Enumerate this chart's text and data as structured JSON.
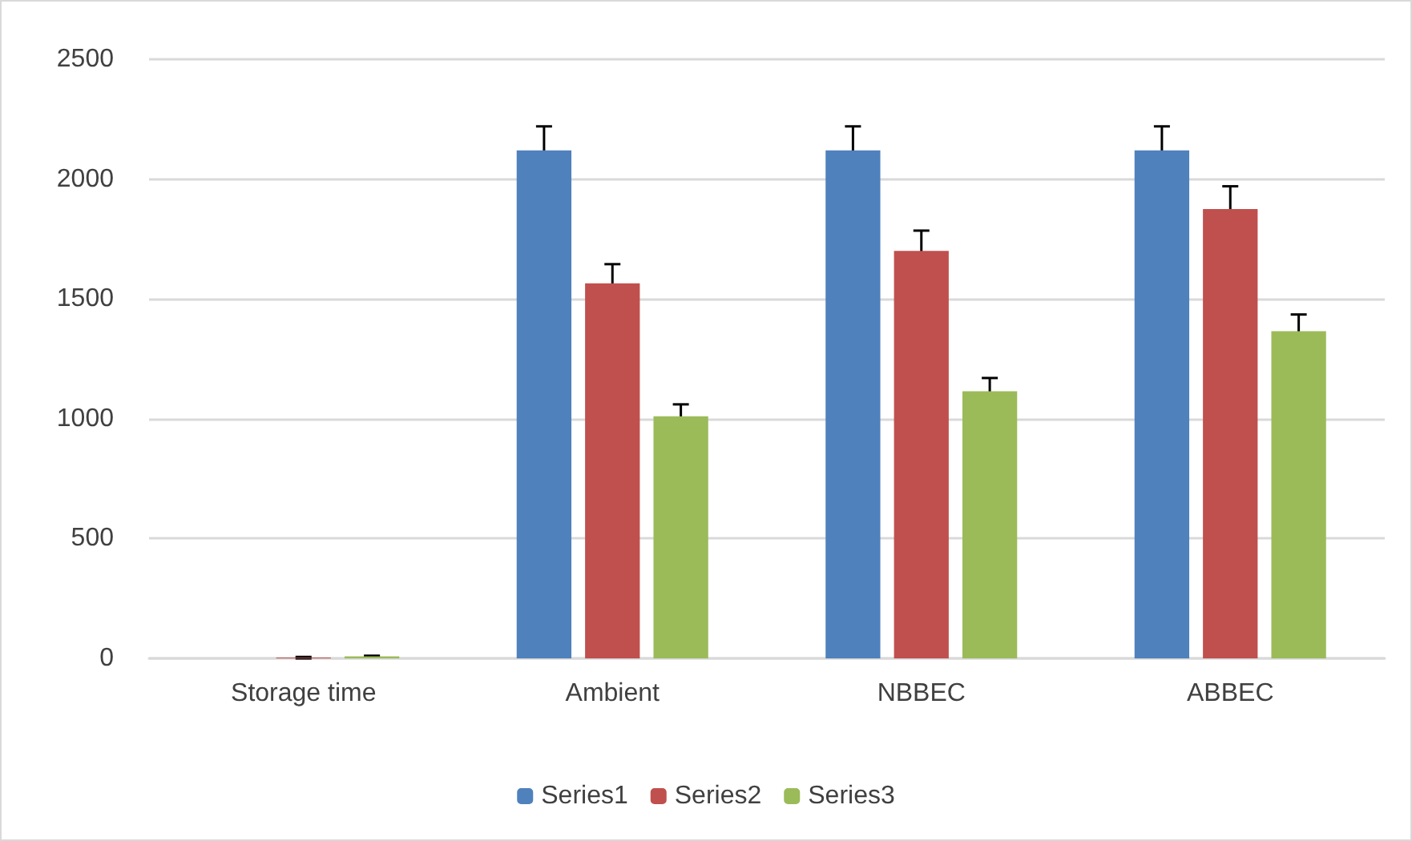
{
  "chart_data": {
    "type": "bar",
    "categories": [
      "Storage time",
      "Ambient",
      "NBBEC",
      "ABBEC"
    ],
    "series": [
      {
        "name": "Series1",
        "color": "#4f81bd",
        "values": [
          0,
          2120,
          2120,
          2120
        ],
        "errors": [
          null,
          100,
          100,
          100
        ]
      },
      {
        "name": "Series2",
        "color": "#c0504d",
        "values": [
          3,
          1565,
          1700,
          1875
        ],
        "errors": [
          3,
          80,
          85,
          95
        ]
      },
      {
        "name": "Series3",
        "color": "#9bbb59",
        "values": [
          8,
          1010,
          1115,
          1365
        ],
        "errors": [
          3,
          50,
          55,
          70
        ]
      }
    ],
    "ylim": [
      0,
      2500
    ],
    "yticks": [
      0,
      500,
      1000,
      1500,
      2000,
      2500
    ],
    "grid": "y",
    "legend": "bottom"
  }
}
